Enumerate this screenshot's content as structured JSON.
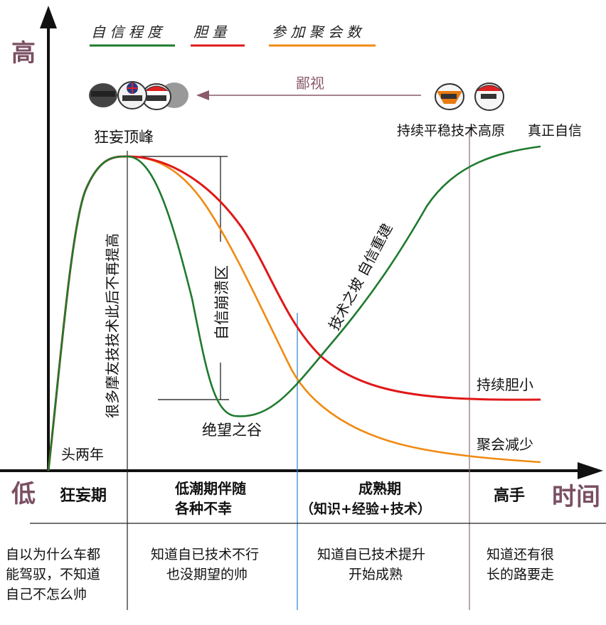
{
  "legend": [
    {
      "label": "自 信 程 度",
      "color": "#1f7a2e"
    },
    {
      "label": "胆 量",
      "color": "#e01818"
    },
    {
      "label": "参 加 聚 会 数",
      "color": "#f08a12"
    }
  ],
  "axis": {
    "y_high": "高",
    "y_low": "低",
    "x_label": "时间"
  },
  "annotations": {
    "peak": "狂妄顶峰",
    "contempt": "鄙视",
    "plateau": "持续平稳技术高原",
    "true_confidence": "真正自信",
    "first_two_years": "头两年",
    "no_improve": "很多摩友技技术此后不再提高",
    "collapse_zone": "自信崩溃区",
    "despair_valley": "绝望之谷",
    "slope": "技术之坡  自信重建",
    "timid": "持续胆小",
    "fewer_parties": "聚会减少"
  },
  "phases": [
    {
      "line1": "狂妄期",
      "line2": ""
    },
    {
      "line1": "低潮期伴随",
      "line2": "各种不幸"
    },
    {
      "line1": "成熟期",
      "line2": "（知识+经验+技术）"
    },
    {
      "line1": "高手",
      "line2": ""
    }
  ],
  "descriptions": [
    {
      "lines": [
        "自以为什么车都",
        "能驾驭，不知道",
        "自己不怎么帅"
      ]
    },
    {
      "lines": [
        "知道自已技术不行",
        "也没期望的帅"
      ]
    },
    {
      "lines": [
        "知道自已技术提升",
        "开始成熟"
      ]
    },
    {
      "lines": [
        "知道还有很",
        "长的路要走"
      ]
    }
  ],
  "colors": {
    "confidence": "#1f7a2e",
    "courage": "#e01818",
    "parties": "#f08a12",
    "divider_blue": "#2a7fd4",
    "divider_purple": "#8a6a7a",
    "contempt_arrow": "#8a5a6a"
  },
  "icons": [
    "helmet-group-icon",
    "helmet-pair-icon"
  ]
}
